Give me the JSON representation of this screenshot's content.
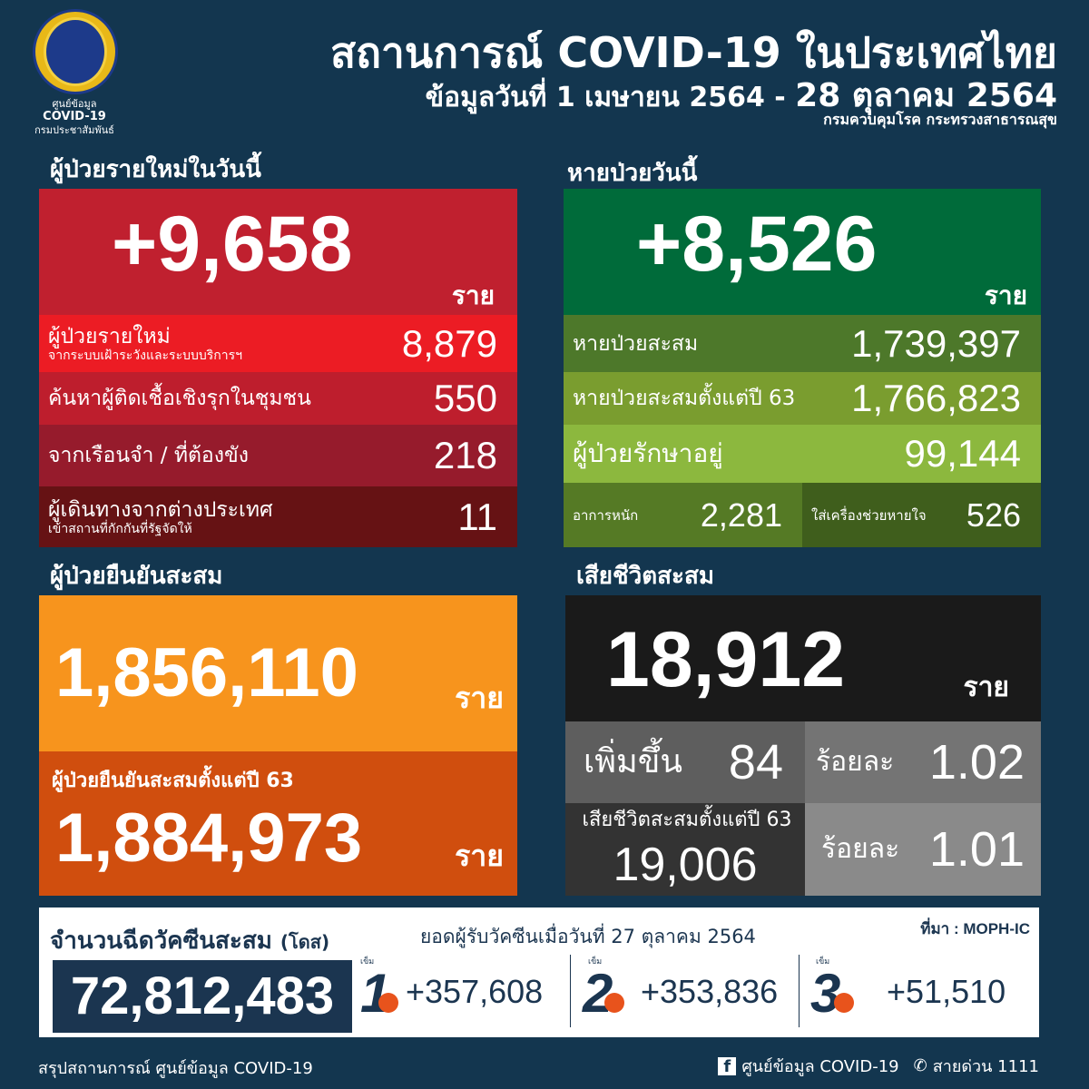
{
  "logo": {
    "line1": "ศูนย์ข้อมูล",
    "line2": "COVID-19",
    "line3": "กรมประชาสัมพันธ์"
  },
  "header": {
    "title": "สถานการณ์ COVID-19 ในประเทศไทย",
    "date_from": "ข้อมูลวันที่ 1 เมษายน 2564 -",
    "date_to": "28 ตุลาคม 2564",
    "source": "กรมควบคุมโรค กระทรวงสาธารณสุข"
  },
  "unit": "ราย",
  "new_cases": {
    "heading": "ผู้ป่วยรายใหม่ในวันนี้",
    "total": "+9,658",
    "rows": [
      {
        "label": "ผู้ป่วยรายใหม่",
        "sublabel": "จากระบบเฝ้าระวังและระบบบริการฯ",
        "value": "8,879"
      },
      {
        "label": "ค้นหาผู้ติดเชื้อเชิงรุกในชุมชน",
        "value": "550"
      },
      {
        "label": "จากเรือนจำ / ที่ต้องขัง",
        "value": "218"
      },
      {
        "label": "ผู้เดินทางจากต่างประเทศ",
        "sublabel": "เข้าสถานที่กักกันที่รัฐจัดให้",
        "value": "11"
      }
    ]
  },
  "recovered": {
    "heading": "หายป่วยวันนี้",
    "total": "+8,526",
    "rows": [
      {
        "label": "หายป่วยสะสม",
        "value": "1,739,397"
      },
      {
        "label": "หายป่วยสะสมตั้งแต่ปี 63",
        "value": "1,766,823"
      },
      {
        "label": "ผู้ป่วยรักษาอยู่",
        "value": "99,144"
      }
    ],
    "severe_label": "อาการหนัก",
    "severe_value": "2,281",
    "vent_label": "ใส่เครื่องช่วยหายใจ",
    "vent_value": "526"
  },
  "confirmed": {
    "heading": "ผู้ป่วยยืนยันสะสม",
    "total": "1,856,110",
    "since63_label": "ผู้ป่วยยืนยันสะสมตั้งแต่ปี 63",
    "since63_value": "1,884,973"
  },
  "deaths": {
    "heading": "เสียชีวิตสะสม",
    "total": "18,912",
    "increase_label": "เพิ่มขึ้น",
    "increase_value": "84",
    "pct_label": "ร้อยละ",
    "pct_value": "1.02",
    "since63_label": "เสียชีวิตสะสมตั้งแต่ปี 63",
    "since63_value": "19,006",
    "pct63_value": "1.01"
  },
  "vaccine": {
    "heading": "จำนวนฉีดวัคซีนสะสม",
    "unit": "(โดส)",
    "total": "72,812,483",
    "date_label": "ยอดผู้รับวัคซีนเมื่อวันที่ 27 ตุลาคม 2564",
    "source": "ที่มา : MOPH-IC",
    "dose_word": "เข็ม",
    "doses": [
      {
        "n": "1",
        "value": "+357,608"
      },
      {
        "n": "2",
        "value": "+353,836"
      },
      {
        "n": "3",
        "value": "+51,510"
      }
    ]
  },
  "footer": {
    "left": "สรุปสถานการณ์ ศูนย์ข้อมูล COVID-19",
    "facebook": "ศูนย์ข้อมูล COVID-19",
    "hotline": "สายด่วน 1111"
  },
  "colors": {
    "background": "#13364f",
    "red": "#c0202f",
    "green": "#006b3a",
    "orange": "#f7941d",
    "black": "#1a1a1a"
  }
}
